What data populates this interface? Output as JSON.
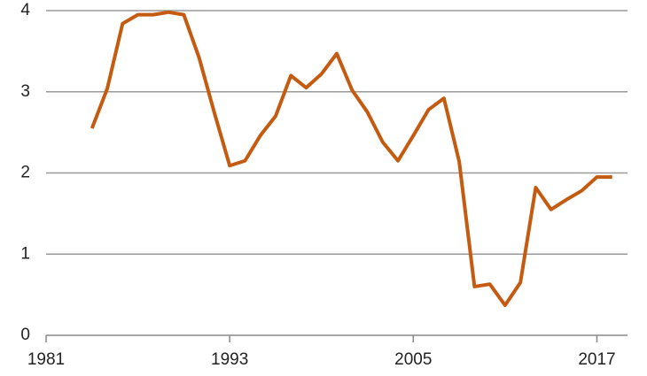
{
  "chart_data": {
    "type": "line",
    "x": [
      1984,
      1985,
      1986,
      1987,
      1988,
      1989,
      1990,
      1991,
      1992,
      1993,
      1994,
      1995,
      1996,
      1997,
      1998,
      1999,
      2000,
      2001,
      2002,
      2003,
      2004,
      2005,
      2006,
      2007,
      2008,
      2009,
      2010,
      2011,
      2012,
      2013,
      2014,
      2015,
      2016,
      2017,
      2018
    ],
    "series": [
      {
        "name": null,
        "color": "#c55a11",
        "values": [
          2.55,
          3.04,
          3.84,
          3.95,
          3.95,
          3.98,
          3.95,
          3.42,
          2.74,
          2.09,
          2.15,
          2.46,
          2.7,
          3.2,
          3.05,
          3.22,
          3.47,
          3.02,
          2.75,
          2.38,
          2.15,
          2.46,
          2.78,
          2.92,
          2.14,
          0.6,
          0.63,
          0.37,
          0.65,
          1.82,
          1.55,
          1.67,
          1.78,
          1.95,
          1.95
        ]
      }
    ],
    "xlim": [
      1981,
      2019
    ],
    "xticks": [
      1981,
      1993,
      2005,
      2017
    ],
    "ylim": [
      0,
      4
    ],
    "yticks": [
      0,
      1,
      2,
      3,
      4
    ],
    "grid": true
  }
}
